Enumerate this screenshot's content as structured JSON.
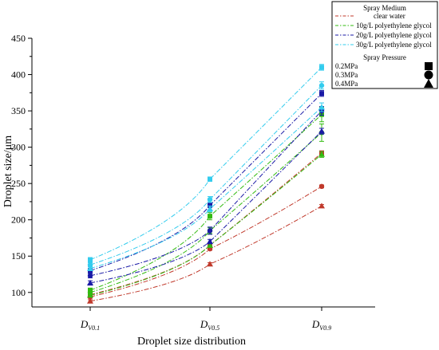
{
  "chart_data": {
    "type": "line",
    "xlabel": "Droplet size distribution",
    "ylabel": "Droplet size/μm",
    "ylim": [
      80,
      450
    ],
    "yticks": [
      100,
      150,
      200,
      250,
      300,
      350,
      400,
      450
    ],
    "grid": false,
    "legend_placement": "top-right",
    "categories": [
      {
        "main": "D",
        "sub": "V0.1"
      },
      {
        "main": "D",
        "sub": "V0.5"
      },
      {
        "main": "D",
        "sub": "V0.9"
      }
    ],
    "legend": {
      "medium_title": "Spray Medium",
      "media": [
        {
          "label": "clear water",
          "color": "#c0392b"
        },
        {
          "label": "10g/L polyethylene glycol",
          "color": "#33bb11"
        },
        {
          "label": "20g/L polyethylene glycol",
          "color": "#1a1aa6"
        },
        {
          "label": "30g/L polyethylene glycol",
          "color": "#33ccee"
        }
      ],
      "pressure_title": "Spray Pressure",
      "pressures": [
        {
          "label": "0.2MPa",
          "marker": "square"
        },
        {
          "label": "0.3MPa",
          "marker": "circle"
        },
        {
          "label": "0.4MPa",
          "marker": "triangle"
        }
      ]
    },
    "series": [
      {
        "medium": "clear water",
        "pressure": "0.2MPa",
        "color": "#c0392b",
        "marker": "square",
        "values": [
          97,
          165,
          292
        ],
        "errors": [
          2,
          2,
          3
        ]
      },
      {
        "medium": "clear water",
        "pressure": "0.3MPa",
        "color": "#c0392b",
        "marker": "circle",
        "values": [
          94,
          160,
          246
        ],
        "errors": [
          2,
          2,
          2
        ]
      },
      {
        "medium": "clear water",
        "pressure": "0.4MPa",
        "color": "#c0392b",
        "marker": "triangle",
        "values": [
          88,
          139,
          219
        ],
        "errors": [
          2,
          2,
          2
        ]
      },
      {
        "medium": "10g/L polyethylene glycol",
        "pressure": "0.2MPa",
        "color": "#33bb11",
        "marker": "square",
        "values": [
          103,
          205,
          345
        ],
        "errors": [
          3,
          5,
          10
        ]
      },
      {
        "medium": "10g/L polyethylene glycol",
        "pressure": "0.3MPa",
        "color": "#33bb11",
        "marker": "circle",
        "values": [
          100,
          185,
          320
        ],
        "errors": [
          3,
          4,
          12
        ]
      },
      {
        "medium": "10g/L polyethylene glycol",
        "pressure": "0.4MPa",
        "color": "#33bb11",
        "marker": "triangle",
        "values": [
          96,
          165,
          290
        ],
        "errors": [
          2,
          3,
          4
        ]
      },
      {
        "medium": "20g/L polyethylene glycol",
        "pressure": "0.2MPa",
        "color": "#1a1aa6",
        "marker": "square",
        "values": [
          130,
          220,
          374
        ],
        "errors": [
          3,
          3,
          4
        ]
      },
      {
        "medium": "20g/L polyethylene glycol",
        "pressure": "0.3MPa",
        "color": "#1a1aa6",
        "marker": "circle",
        "values": [
          123,
          185,
          350
        ],
        "errors": [
          3,
          5,
          6
        ]
      },
      {
        "medium": "20g/L polyethylene glycol",
        "pressure": "0.4MPa",
        "color": "#1a1aa6",
        "marker": "triangle",
        "values": [
          113,
          170,
          322
        ],
        "errors": [
          3,
          3,
          4
        ]
      },
      {
        "medium": "30g/L polyethylene glycol",
        "pressure": "0.2MPa",
        "color": "#33ccee",
        "marker": "square",
        "values": [
          145,
          256,
          410
        ],
        "errors": [
          3,
          3,
          4
        ]
      },
      {
        "medium": "30g/L polyethylene glycol",
        "pressure": "0.3MPa",
        "color": "#33ccee",
        "marker": "circle",
        "values": [
          138,
          228,
          385
        ],
        "errors": [
          3,
          4,
          5
        ]
      },
      {
        "medium": "30g/L polyethylene glycol",
        "pressure": "0.4MPa",
        "color": "#33ccee",
        "marker": "triangle",
        "values": [
          133,
          215,
          355
        ],
        "errors": [
          3,
          4,
          6
        ]
      }
    ]
  }
}
